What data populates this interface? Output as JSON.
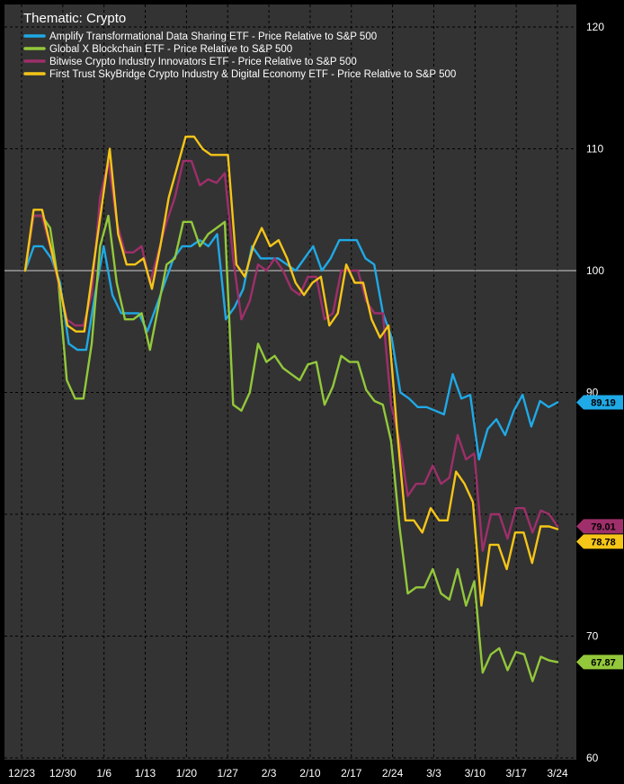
{
  "chart_data": {
    "type": "line",
    "title": "Thematic: Crypto",
    "ylim": [
      60,
      120
    ],
    "yticks": [
      60,
      70,
      90,
      100,
      110,
      120
    ],
    "reference_line": 100,
    "x_tick_labels": [
      "12/23",
      "12/30",
      "1/6",
      "1/13",
      "1/20",
      "1/27",
      "2/3",
      "2/10",
      "2/17",
      "2/24",
      "3/3",
      "3/10",
      "3/17",
      "3/24"
    ],
    "legend_position": "top-left",
    "grid": true,
    "series": [
      {
        "name": "Amplify Transformational Data Sharing ETF - Price Relative to S&P 500",
        "color": "#1fa9e6",
        "last_label": "89.19",
        "values": [
          100,
          102,
          102,
          101,
          99,
          94,
          93.5,
          93.5,
          98,
          102,
          98,
          96.5,
          96.5,
          96.5,
          95,
          97,
          99,
          101,
          102,
          102,
          102.5,
          102,
          103,
          96,
          97,
          98.5,
          102,
          101,
          101,
          101,
          100.5,
          100,
          101,
          102,
          100,
          101,
          102.5,
          102.5,
          102.5,
          101,
          100.5,
          96.5,
          94.5,
          90,
          89.5,
          88.8,
          88.8,
          88.5,
          88.2,
          91.5,
          89.5,
          89.8,
          84.5,
          87,
          87.8,
          86.5,
          88.5,
          89.8,
          87.2,
          89.3,
          88.8,
          89.19
        ]
      },
      {
        "name": "Global X Blockchain ETF - Price Relative to S&P 500",
        "color": "#93c83b",
        "last_label": "67.87",
        "values": [
          100,
          104.5,
          104.5,
          103.5,
          99,
          91,
          89.5,
          89.5,
          94,
          102,
          104.5,
          99,
          96,
          96,
          96.5,
          93.5,
          97,
          100.5,
          101,
          104,
          104,
          102,
          103,
          103.5,
          104,
          89,
          88.5,
          90,
          94,
          92.5,
          93,
          92,
          91.5,
          91,
          92.3,
          92.5,
          89,
          90.5,
          93,
          92.5,
          92.5,
          90.2,
          89.3,
          89,
          86,
          79,
          73.5,
          74,
          74,
          75.5,
          73.5,
          73,
          75.5,
          72.5,
          74.5,
          67,
          68.5,
          69,
          67.2,
          68.7,
          68.5,
          66.3,
          68.3,
          68,
          67.87
        ]
      },
      {
        "name": "Bitwise Crypto Industry Innovators ETF - Price Relative to S&P 500",
        "color": "#9e2f6a",
        "last_label": "79.01",
        "values": [
          100,
          104.5,
          104.5,
          102,
          99,
          96,
          95.5,
          95.5,
          98,
          106,
          109,
          104,
          101.5,
          101.5,
          102,
          99,
          101.5,
          104,
          106,
          109,
          109,
          107,
          107.5,
          107.2,
          108,
          101,
          96,
          97.5,
          100.5,
          100,
          101,
          100,
          98.5,
          98,
          99.5,
          99.5,
          96,
          96.5,
          100,
          100,
          100,
          97.5,
          96.5,
          96.5,
          89,
          86,
          81.5,
          82.5,
          82.5,
          84,
          82.5,
          83,
          86.5,
          84.5,
          85,
          77,
          80,
          80,
          78,
          80.5,
          80.5,
          78.5,
          80.3,
          80,
          79.01
        ]
      },
      {
        "name": "First Trust SkyBridge Crypto Industry & Digital Economy ETF - Price Relative to S&P 500",
        "color": "#f5c518",
        "last_label": "78.78",
        "values": [
          100,
          105,
          105,
          102,
          99,
          95.5,
          95,
          95,
          100,
          105,
          110,
          103,
          100.5,
          100.5,
          101,
          98.5,
          102,
          106,
          108.5,
          111,
          111,
          110,
          109.5,
          109.5,
          109.5,
          100.5,
          99.5,
          102,
          103.5,
          102,
          102.5,
          101,
          99,
          98,
          99,
          99.5,
          95.5,
          96.5,
          100.5,
          99,
          99,
          96,
          94.5,
          95.5,
          87,
          79.5,
          79.5,
          78.5,
          80.5,
          79.5,
          79.5,
          83.5,
          82.5,
          81,
          72.5,
          77.5,
          77.5,
          75.5,
          78.5,
          78.5,
          76,
          79,
          79,
          78.78
        ]
      }
    ]
  }
}
